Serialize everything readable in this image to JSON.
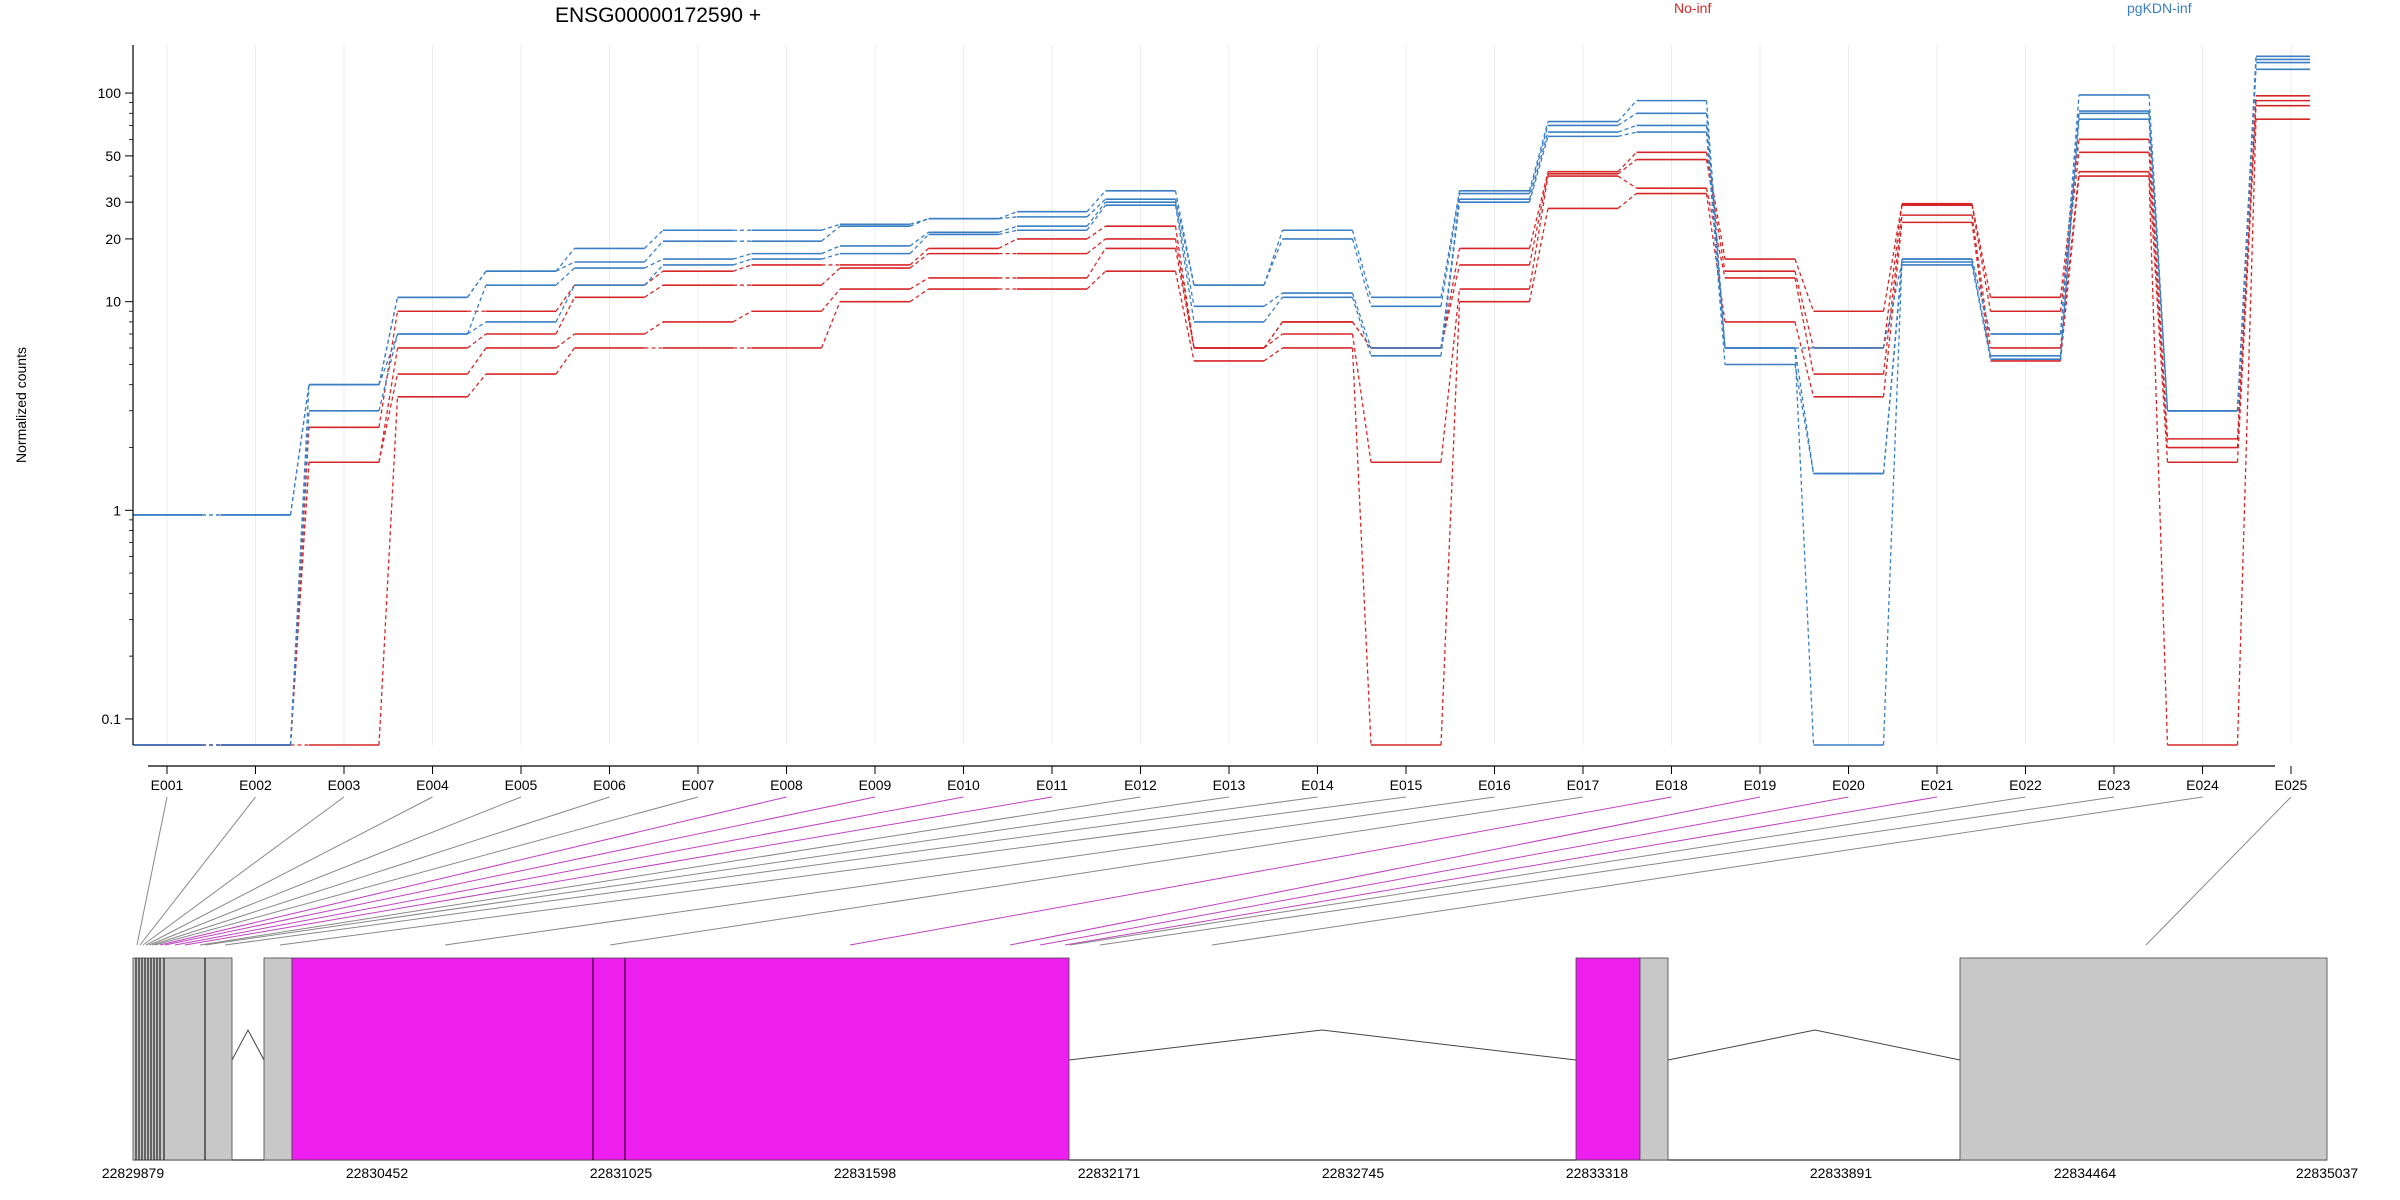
{
  "chart_data": {
    "type": "line",
    "title": "ENSG00000172590 +",
    "ylabel": "Normalized counts",
    "y_scale": "log",
    "ylim": [
      0.075,
      170
    ],
    "y_ticks": [
      0.1,
      1,
      10,
      20,
      30,
      50,
      100
    ],
    "y_tick_labels": [
      "0.1",
      "1",
      "10",
      "20",
      "30",
      "50",
      "100"
    ],
    "grid": "vertical",
    "legend": [
      {
        "name": "No-inf",
        "color": "#d62728",
        "placement": "top"
      },
      {
        "name": "pgKDN-inf",
        "color": "#3a7fc4",
        "placement": "top-right"
      }
    ],
    "categories": [
      "E001",
      "E002",
      "E003",
      "E004",
      "E005",
      "E006",
      "E007",
      "E008",
      "E009",
      "E010",
      "E011",
      "E012",
      "E013",
      "E014",
      "E015",
      "E016",
      "E017",
      "E018",
      "E019",
      "E020",
      "E021",
      "E022",
      "E023",
      "E024",
      "E025"
    ],
    "series": [
      {
        "group": "No-inf",
        "color": "#d62728",
        "values": [
          0.075,
          0.075,
          0.075,
          3.5,
          4.5,
          6,
          6,
          6,
          10,
          11.5,
          11.5,
          14,
          5.2,
          6,
          0.075,
          10,
          28,
          33,
          8,
          3.5,
          24,
          5.2,
          40,
          0.075,
          75
        ]
      },
      {
        "group": "No-inf",
        "color": "#d62728",
        "values": [
          0.075,
          0.075,
          1.7,
          4.5,
          6,
          7,
          8,
          9,
          11.5,
          13,
          13,
          18,
          6,
          7,
          1.7,
          11.5,
          40,
          35,
          13,
          4.5,
          26,
          6,
          42,
          1.7,
          87
        ]
      },
      {
        "group": "No-inf",
        "color": "#d62728",
        "values": [
          0.075,
          0.075,
          1.7,
          6,
          7,
          10.5,
          12,
          12,
          14.5,
          17,
          17,
          20,
          6,
          8,
          6,
          15,
          41,
          48,
          14,
          6,
          29,
          9,
          52,
          2,
          92
        ]
      },
      {
        "group": "No-inf",
        "color": "#d62728",
        "values": [
          0.075,
          0.075,
          2.5,
          9,
          9,
          12,
          14,
          15,
          15,
          18,
          20,
          23,
          6,
          8,
          6,
          18,
          42,
          52,
          16,
          9,
          29.5,
          10.5,
          60,
          2.2,
          97
        ]
      },
      {
        "group": "pgKDN-inf",
        "color": "#3a7fc4",
        "values": [
          0.075,
          0.075,
          3,
          7,
          8,
          12,
          15,
          16,
          17,
          21,
          22,
          29,
          8,
          10.5,
          5.5,
          30,
          62,
          65,
          5,
          1.5,
          15,
          5.3,
          75,
          3,
          130
        ]
      },
      {
        "group": "pgKDN-inf",
        "color": "#3a7fc4",
        "values": [
          0.075,
          0.075,
          4,
          7,
          12,
          14.5,
          16,
          17,
          18.5,
          21.5,
          23,
          30,
          9.5,
          11,
          6,
          31,
          65,
          70,
          6,
          6,
          15.5,
          5.5,
          80,
          3,
          140
        ]
      },
      {
        "group": "pgKDN-inf",
        "color": "#3a7fc4",
        "values": [
          0.95,
          0.95,
          4,
          10.5,
          14,
          15.5,
          19.5,
          19.5,
          23,
          25,
          25.5,
          31,
          12,
          20,
          9.5,
          33,
          70,
          80,
          6,
          0.075,
          16,
          7,
          82,
          3,
          145
        ]
      },
      {
        "group": "pgKDN-inf",
        "color": "#3a7fc4",
        "values": [
          0.95,
          0.95,
          4,
          10.5,
          14,
          18,
          22,
          22,
          23.5,
          25,
          27,
          34,
          12,
          22,
          10.5,
          34,
          73,
          92,
          6,
          1.5,
          16,
          7,
          98,
          3,
          150
        ]
      }
    ]
  },
  "gene_model": {
    "coordinate_labels": [
      "22829879",
      "22830452",
      "22831025",
      "22831598",
      "22832171",
      "22832745",
      "22833318",
      "22833891",
      "22834464",
      "22835037"
    ],
    "highlight_color": "#ee1eee",
    "exon_color": "#c8c8c8"
  }
}
